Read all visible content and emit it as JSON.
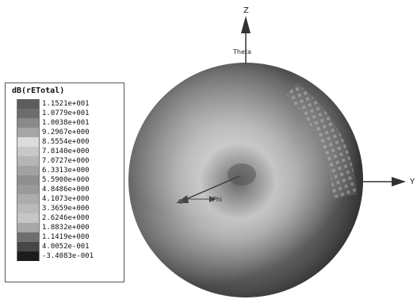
{
  "legend": {
    "title": "dB(rETotal)",
    "entries": [
      {
        "label": "1.1521e+001",
        "color": "#5c5c5c"
      },
      {
        "label": "1.0779e+001",
        "color": "#6d6d6d"
      },
      {
        "label": "1.0038e+001",
        "color": "#8a8a8a"
      },
      {
        "label": "9.2967e+000",
        "color": "#a6a6a6"
      },
      {
        "label": "8.5554e+000",
        "color": "#dcdcdc"
      },
      {
        "label": "7.8140e+000",
        "color": "#c8c8c8"
      },
      {
        "label": "7.0727e+000",
        "color": "#b5b5b5"
      },
      {
        "label": "6.3313e+000",
        "color": "#a2a2a2"
      },
      {
        "label": "5.5900e+000",
        "color": "#8f8f8f"
      },
      {
        "label": "4.8486e+000",
        "color": "#9a9a9a"
      },
      {
        "label": "4.1073e+000",
        "color": "#acacac"
      },
      {
        "label": "3.3659e+000",
        "color": "#bababa"
      },
      {
        "label": "2.6246e+000",
        "color": "#c6c6c6"
      },
      {
        "label": "1.8832e+000",
        "color": "#a7a7a7"
      },
      {
        "label": "1.1419e+000",
        "color": "#6f6f6f"
      },
      {
        "label": "4.0052e-001",
        "color": "#474747"
      },
      {
        "label": "-3.4083e-001",
        "color": "#1c1c1c"
      }
    ]
  },
  "axes": {
    "z_label": "Z",
    "y_label": "Y",
    "theta_label": "Theta",
    "phi_label": "Phi"
  },
  "colors": {
    "sphere_outer": "#4a4a4a",
    "sphere_mid": "#7a7a7a",
    "sphere_ring": "#bcbcbc",
    "sphere_core": "#6a6a6a"
  }
}
